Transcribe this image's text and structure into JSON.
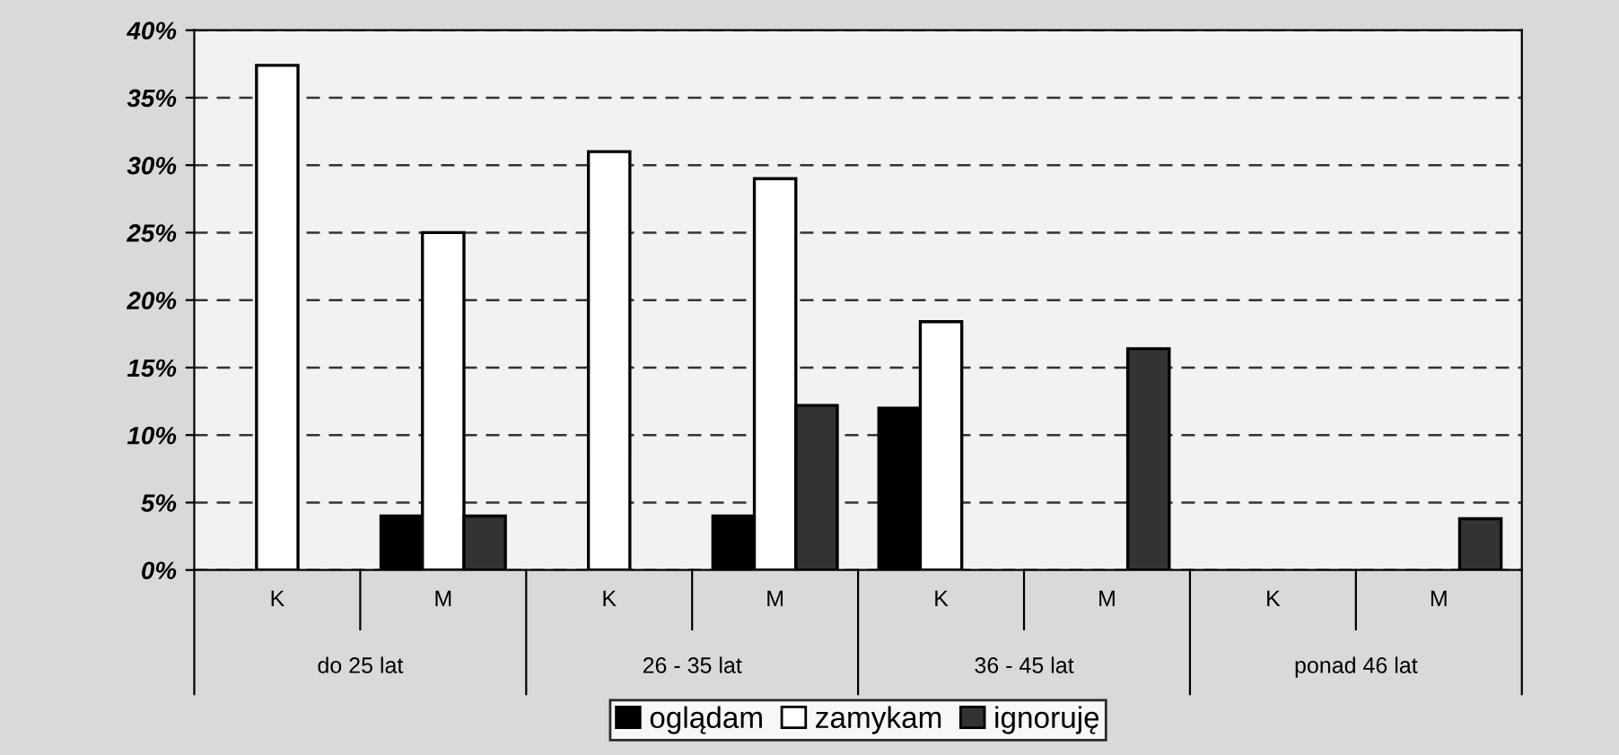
{
  "chart_data": {
    "type": "bar",
    "categories": [
      "K",
      "M",
      "K",
      "M",
      "K",
      "M",
      "K",
      "M"
    ],
    "annotations": [
      "do 25 lat",
      "26 - 35 lat",
      "36 - 45 lat",
      "ponad 46 lat"
    ],
    "series": [
      {
        "name": "oglądam",
        "color": "#000000",
        "values": [
          null,
          4,
          null,
          4,
          12,
          null,
          null,
          null
        ]
      },
      {
        "name": "zamykam",
        "color": "#ffffff",
        "values": [
          37.4,
          25,
          31,
          29,
          18.4,
          null,
          null,
          null
        ]
      },
      {
        "name": "ignoruję",
        "color": "#333333",
        "values": [
          null,
          4,
          null,
          12.2,
          null,
          16.4,
          null,
          3.8
        ]
      }
    ],
    "ylim": [
      0,
      40
    ],
    "yticks": [
      {
        "value": 0,
        "label": "0%"
      },
      {
        "value": 5,
        "label": "5%"
      },
      {
        "value": 10,
        "label": "10%"
      },
      {
        "value": 15,
        "label": "15%"
      },
      {
        "value": 20,
        "label": "20%"
      },
      {
        "value": 25,
        "label": "25%"
      },
      {
        "value": 30,
        "label": "30%"
      },
      {
        "value": 35,
        "label": "35%"
      },
      {
        "value": 40,
        "label": "40%"
      }
    ],
    "grid": "y",
    "legend": "bottom"
  }
}
